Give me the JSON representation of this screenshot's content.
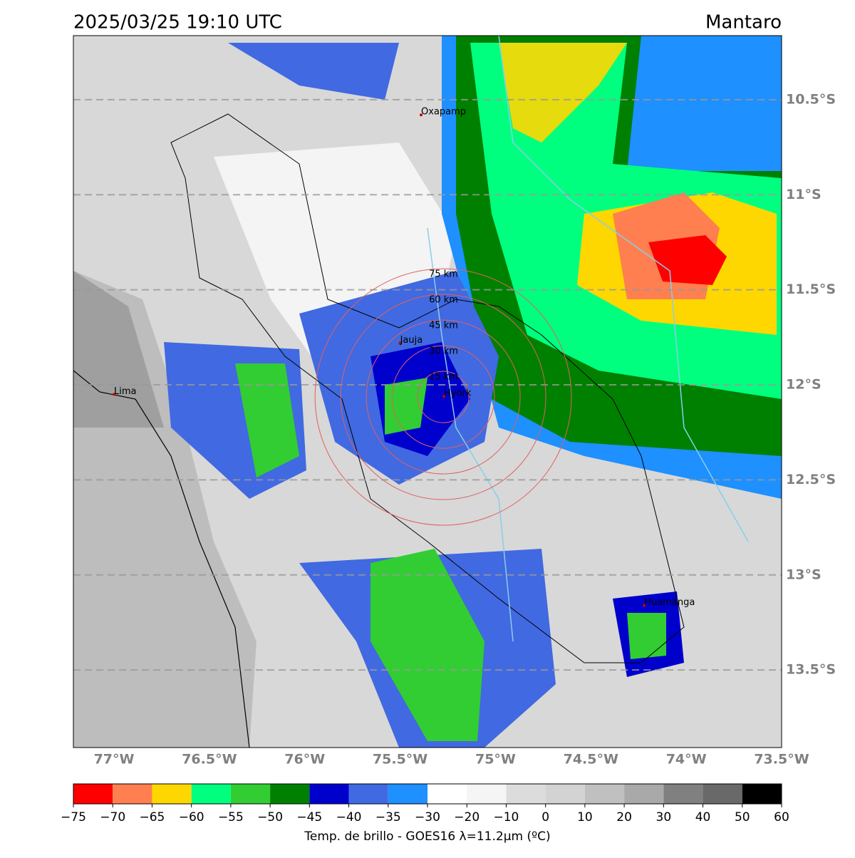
{
  "header": {
    "title": "2025/03/25 19:10 UTC",
    "region": "Mantaro"
  },
  "map": {
    "lon_range": [
      -77.213,
      -73.5
    ],
    "lat_range": [
      -13.908,
      -10.163
    ],
    "lon_ticks": [
      {
        "value": -77,
        "label": "77°W"
      },
      {
        "value": -76.5,
        "label": "76.5°W"
      },
      {
        "value": -76,
        "label": "76°W"
      },
      {
        "value": -75.5,
        "label": "75.5°W"
      },
      {
        "value": -75,
        "label": "75°W"
      },
      {
        "value": -74.5,
        "label": "74.5°W"
      },
      {
        "value": -74,
        "label": "74°W"
      },
      {
        "value": -73.5,
        "label": "73.5°W"
      }
    ],
    "lat_ticks": [
      {
        "value": -10.5,
        "label": "10.5°S"
      },
      {
        "value": -11,
        "label": "11°S"
      },
      {
        "value": -11.5,
        "label": "11.5°S"
      },
      {
        "value": -12,
        "label": "12°S"
      },
      {
        "value": -12.5,
        "label": "12.5°S"
      },
      {
        "value": -13,
        "label": "13°S"
      },
      {
        "value": -13.5,
        "label": "13.5°S"
      }
    ],
    "places": [
      {
        "name": "Oxapamp",
        "lon": -75.39,
        "lat": -10.58
      },
      {
        "name": "Lima",
        "lon": -77.0,
        "lat": -12.05
      },
      {
        "name": "Jauja",
        "lon": -75.5,
        "lat": -11.78
      },
      {
        "name": "Hyork",
        "lon": -75.27,
        "lat": -12.06
      },
      {
        "name": "Huamanga",
        "lon": -74.22,
        "lat": -13.16
      }
    ],
    "rings": {
      "center": {
        "lon": -75.274,
        "lat": -12.064
      },
      "radii_km": [
        {
          "value": 15,
          "label": "15 km"
        },
        {
          "value": 30,
          "label": "30 km"
        },
        {
          "value": 45,
          "label": "45 km"
        },
        {
          "value": 60,
          "label": "60 km"
        },
        {
          "value": 75,
          "label": "75 km"
        }
      ]
    }
  },
  "colorbar": {
    "ticks": [
      {
        "value": -75,
        "label": "−75"
      },
      {
        "value": -70,
        "label": "−70"
      },
      {
        "value": -65,
        "label": "−65"
      },
      {
        "value": -60,
        "label": "−60"
      },
      {
        "value": -55,
        "label": "−55"
      },
      {
        "value": -50,
        "label": "−50"
      },
      {
        "value": -45,
        "label": "−45"
      },
      {
        "value": -40,
        "label": "−40"
      },
      {
        "value": -35,
        "label": "−35"
      },
      {
        "value": -30,
        "label": "−30"
      },
      {
        "value": -20,
        "label": "−20"
      },
      {
        "value": -10,
        "label": "−10"
      },
      0,
      10,
      20,
      30,
      40,
      50,
      60
    ],
    "colors": [
      "#ff0000",
      "#ff7f50",
      "#ffd700",
      "#00ff7f",
      "#32cd32",
      "#008000",
      "#0000cd",
      "#4169e1",
      "#1e90ff",
      "#ffffff",
      "#f5f5f5",
      "#dcdcdc",
      "#d3d3d3",
      "#c0c0c0",
      "#a9a9a9",
      "#808080",
      "#696969",
      "#000000"
    ],
    "label": "Temp. de brillo - GOES16 λ=11.2μm (ºC)"
  }
}
